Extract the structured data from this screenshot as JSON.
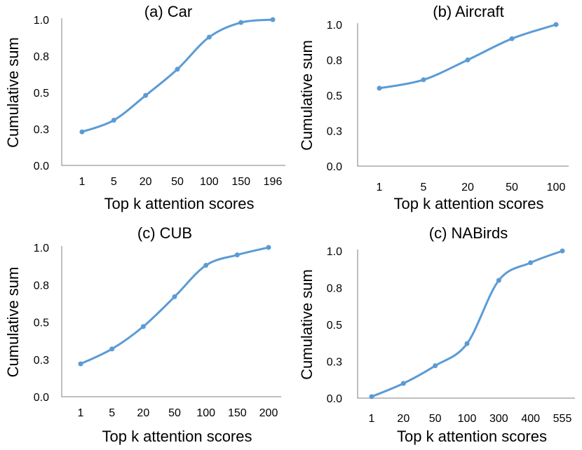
{
  "colors": {
    "series": "#5b9bd5",
    "axis": "#7f7f7f",
    "background": "#ffffff"
  },
  "chart_data": [
    {
      "type": "line",
      "title": "(a) Car",
      "xlabel": "Top k attention scores",
      "ylabel": "Cumulative sum",
      "categories": [
        "1",
        "5",
        "20",
        "50",
        "100",
        "150",
        "196"
      ],
      "values": [
        0.23,
        0.31,
        0.48,
        0.66,
        0.88,
        0.98,
        1.0
      ],
      "ylim": [
        0,
        1
      ],
      "yticks": [
        "0.0",
        "0.3",
        "0.5",
        "0.8",
        "1.0"
      ],
      "grid": false,
      "smooth": true
    },
    {
      "type": "line",
      "title": "(b) Aircraft",
      "xlabel": "Top k attention scores",
      "ylabel": "Cumulative sum",
      "categories": [
        "1",
        "5",
        "20",
        "50",
        "100"
      ],
      "values": [
        0.55,
        0.61,
        0.75,
        0.9,
        1.0
      ],
      "ylim": [
        0,
        1
      ],
      "yticks": [
        "0.0",
        "0.3",
        "0.5",
        "0.8",
        "1.0"
      ],
      "grid": false,
      "smooth": true
    },
    {
      "type": "line",
      "title": "(c) CUB",
      "xlabel": "Top k attention scores",
      "ylabel": "Cumulative sum",
      "categories": [
        "1",
        "5",
        "20",
        "50",
        "100",
        "150",
        "200"
      ],
      "values": [
        0.22,
        0.32,
        0.47,
        0.67,
        0.88,
        0.95,
        1.0
      ],
      "ylim": [
        0,
        1
      ],
      "yticks": [
        "0.0",
        "0.3",
        "0.5",
        "0.8",
        "1.0"
      ],
      "grid": false,
      "smooth": true
    },
    {
      "type": "line",
      "title": "(c) NABirds",
      "xlabel": "Top k attention scores",
      "ylabel": "Cumulative sum",
      "categories": [
        "1",
        "20",
        "50",
        "100",
        "300",
        "400",
        "555"
      ],
      "values": [
        0.01,
        0.1,
        0.22,
        0.37,
        0.8,
        0.92,
        1.0
      ],
      "ylim": [
        0,
        1
      ],
      "yticks": [
        "0.0",
        "0.3",
        "0.5",
        "0.8",
        "1.0"
      ],
      "grid": false,
      "smooth": true
    }
  ]
}
